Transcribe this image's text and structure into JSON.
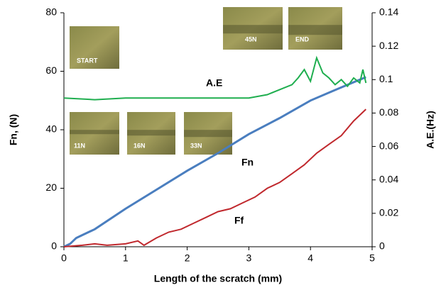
{
  "chart_data": {
    "type": "line",
    "xlabel": "Length of the scratch (mm)",
    "ylabel": "Fn, (N)",
    "y2label": "A.E.(Hz)",
    "xlim": [
      0,
      5
    ],
    "xticks": [
      0,
      1,
      2,
      3,
      4,
      5
    ],
    "ylim": [
      0,
      80
    ],
    "yticks": [
      0,
      20,
      40,
      60,
      80
    ],
    "y2lim": [
      0,
      0.14
    ],
    "y2ticks": [
      0,
      0.02,
      0.04,
      0.06,
      0.08,
      0.1,
      0.12,
      0.14
    ],
    "grid": false,
    "series": [
      {
        "name": "Fn",
        "color": "#4a7ebf",
        "x": [
          0,
          0.1,
          0.2,
          0.3,
          0.5,
          1,
          1.5,
          2,
          2.5,
          3,
          3.5,
          4,
          4.5,
          4.9
        ],
        "values": [
          0,
          1,
          3,
          4,
          6,
          13,
          19.5,
          26,
          32,
          38.5,
          44,
          50,
          54.5,
          58
        ]
      },
      {
        "name": "Ff",
        "color": "#c0282d",
        "x": [
          0,
          0.3,
          0.5,
          0.7,
          1,
          1.2,
          1.3,
          1.5,
          1.7,
          1.9,
          2.1,
          2.3,
          2.5,
          2.7,
          2.9,
          3.1,
          3.3,
          3.5,
          3.7,
          3.9,
          4.1,
          4.3,
          4.5,
          4.7,
          4.9
        ],
        "values": [
          0,
          0.5,
          1,
          0.5,
          1,
          2,
          0.5,
          3,
          5,
          6,
          8,
          10,
          12,
          13,
          15,
          17,
          20,
          22,
          25,
          28,
          32,
          35,
          38,
          43,
          47
        ]
      },
      {
        "name": "A.E",
        "color": "#1fae4f",
        "axis": "y2",
        "x": [
          0,
          0.5,
          1,
          1.5,
          2,
          2.5,
          3,
          3.3,
          3.5,
          3.7,
          3.8,
          3.9,
          4.0,
          4.1,
          4.2,
          4.3,
          4.4,
          4.5,
          4.6,
          4.7,
          4.8,
          4.85,
          4.9
        ],
        "values": [
          0.089,
          0.088,
          0.089,
          0.089,
          0.089,
          0.089,
          0.089,
          0.091,
          0.094,
          0.097,
          0.101,
          0.106,
          0.099,
          0.113,
          0.104,
          0.101,
          0.097,
          0.1,
          0.096,
          0.101,
          0.098,
          0.106,
          0.098
        ]
      }
    ],
    "image_labels": [
      "START",
      "11N",
      "16N",
      "33N",
      "45N",
      "END"
    ]
  }
}
